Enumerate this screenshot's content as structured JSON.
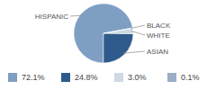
{
  "chart_data": {
    "type": "pie",
    "categories": [
      "HISPANIC",
      "ASIAN",
      "WHITE",
      "BLACK"
    ],
    "values": [
      72.1,
      24.8,
      3.0,
      0.1
    ],
    "value_labels": [
      "72.1%",
      "24.8%",
      "3.0%",
      "0.1%"
    ],
    "colors": [
      "#7f9ec3",
      "#2e5b8b",
      "#cdd9e5",
      "#9cadc6"
    ],
    "legend": "bottom"
  }
}
